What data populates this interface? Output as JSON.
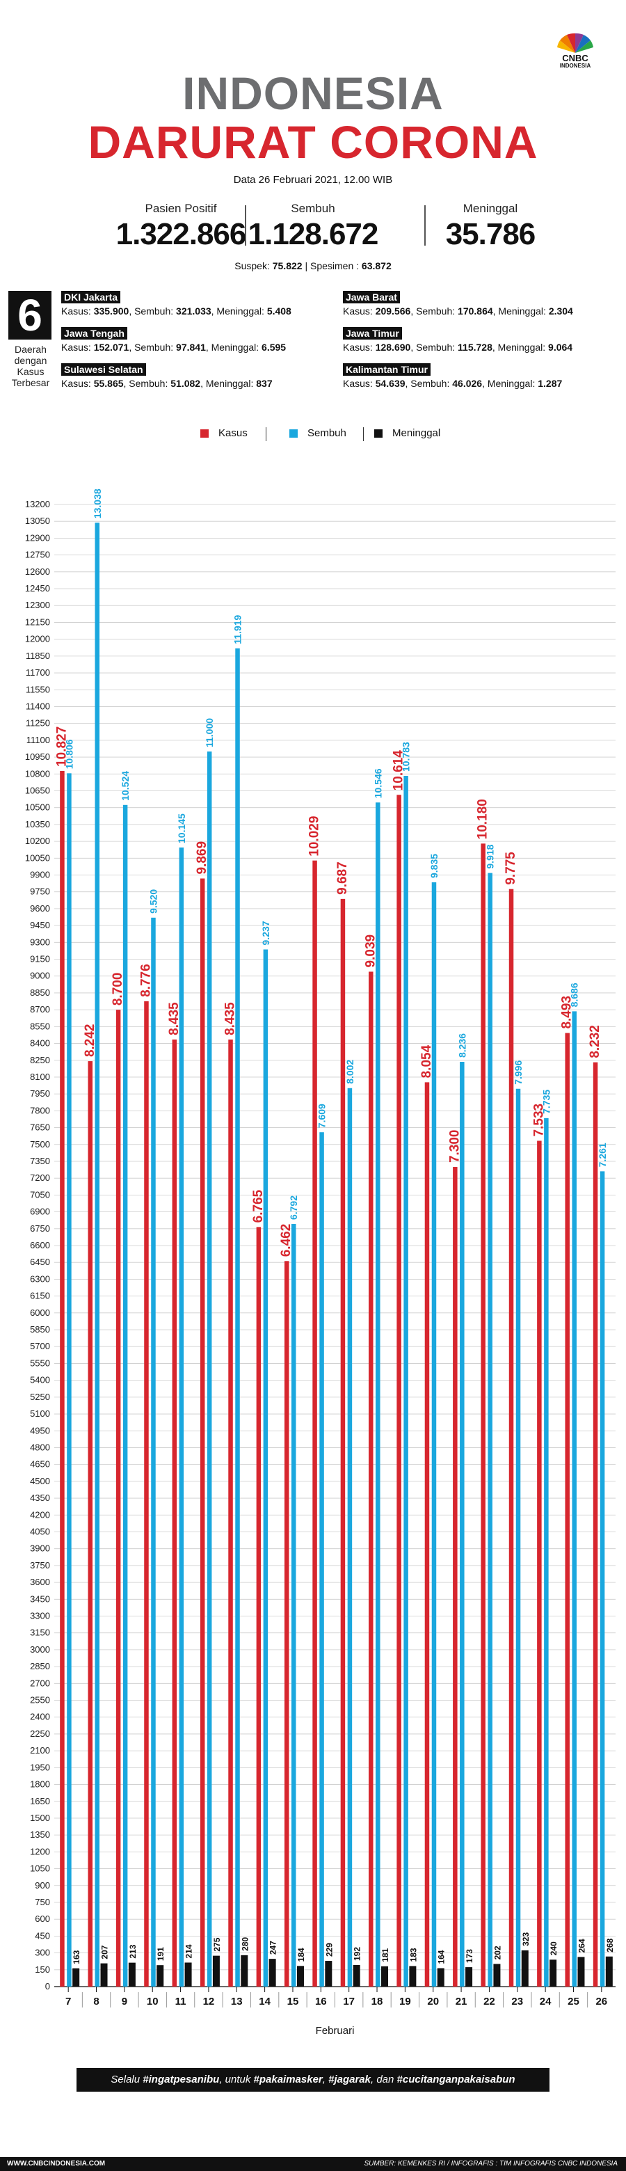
{
  "brand": {
    "logo_text": "CNBC",
    "logo_sub": "INDONESIA"
  },
  "header": {
    "title_line1": "INDONESIA",
    "title_line2": "DARURAT CORONA",
    "date": "Data 26 Februari 2021, 12.00 WIB"
  },
  "stats": [
    {
      "label": "Pasien Positif",
      "value": "1.322.866"
    },
    {
      "label": "Sembuh",
      "value": "1.128.672"
    },
    {
      "label": "Meninggal",
      "value": "35.786"
    }
  ],
  "suspek": {
    "label": "Suspek:",
    "value": "75.822",
    "sep": "|",
    "spesimen_label": "Spesimen :",
    "spesimen_value": "63.872"
  },
  "regions_box": {
    "number": "6",
    "caption": "Daerah dengan Kasus Terbesar"
  },
  "regions": [
    {
      "name": "DKI Jakarta",
      "kasus": "335.900",
      "sembuh": "321.033",
      "meninggal": "5.408"
    },
    {
      "name": "Jawa Barat",
      "kasus": "209.566",
      "sembuh": "170.864",
      "meninggal": "2.304"
    },
    {
      "name": "Jawa Tengah",
      "kasus": "152.071",
      "sembuh": "97.841",
      "meninggal": "6.595"
    },
    {
      "name": "Jawa Timur",
      "kasus": "128.690",
      "sembuh": "115.728",
      "meninggal": "9.064"
    },
    {
      "name": "Sulawesi Selatan",
      "kasus": "55.865",
      "sembuh": "51.082",
      "meninggal": "837"
    },
    {
      "name": "Kalimantan Timur",
      "kasus": "54.639",
      "sembuh": "46.026",
      "meninggal": "1.287"
    }
  ],
  "region_labels": {
    "kasus": "Kasus:",
    "sembuh": ", Sembuh:",
    "meninggal": ", Meninggal:"
  },
  "colors": {
    "kasus": "#d7262e",
    "sembuh": "#1aa7de",
    "meninggal": "#111111",
    "grid": "#cccccc",
    "title_gray": "#6d6e70"
  },
  "chart_data": {
    "type": "bar",
    "legend": [
      "Kasus",
      "Sembuh",
      "Meninggal"
    ],
    "xlabel": "Februari",
    "ylabel": "",
    "ylim": [
      0,
      13200
    ],
    "ytick_step": 150,
    "categories": [
      "7",
      "8",
      "9",
      "10",
      "11",
      "12",
      "13",
      "14",
      "15",
      "16",
      "17",
      "18",
      "19",
      "20",
      "21",
      "22",
      "23",
      "24",
      "25",
      "26"
    ],
    "series": [
      {
        "name": "Kasus",
        "values": [
          10827,
          8242,
          8700,
          8776,
          8435,
          9869,
          8435,
          6765,
          6462,
          10029,
          9687,
          9039,
          10614,
          8054,
          7300,
          10180,
          9775,
          7533,
          8493,
          8232
        ],
        "labels": [
          "10.827",
          "8.242",
          "8.700",
          "8.776",
          "8.435",
          "9.869",
          "8.435",
          "6.765",
          "6.462",
          "10.029",
          "9.687",
          "9.039",
          "10.614",
          "8.054",
          "7.300",
          "10.180",
          "9.775",
          "7.533",
          "8.493",
          "8.232"
        ]
      },
      {
        "name": "Sembuh",
        "values": [
          10806,
          13038,
          10524,
          9520,
          10145,
          11000,
          11919,
          9237,
          6792,
          7609,
          8002,
          10546,
          10783,
          9835,
          8236,
          9918,
          7996,
          7735,
          8686,
          7261
        ],
        "labels": [
          "10.806",
          "13.038",
          "10.524",
          "9.520",
          "10.145",
          "11.000",
          "11.919",
          "9.237",
          "6.792",
          "7.609",
          "8.002",
          "10.546",
          "10.783",
          "9.835",
          "8.236",
          "9.918",
          "7.996",
          "7.735",
          "8.686",
          "7.261"
        ]
      },
      {
        "name": "Meninggal",
        "values": [
          163,
          207,
          213,
          191,
          214,
          275,
          280,
          247,
          184,
          229,
          192,
          181,
          183,
          164,
          173,
          202,
          323,
          240,
          264,
          268
        ],
        "labels": [
          "163",
          "207",
          "213",
          "191",
          "214",
          "275",
          "280",
          "247",
          "184",
          "229",
          "192",
          "181",
          "183",
          "164",
          "173",
          "202",
          "323",
          "240",
          "264",
          "268"
        ]
      }
    ]
  },
  "footer": {
    "note_parts": [
      "Selalu ",
      "#ingatpesanibu",
      ", untuk ",
      "#pakaimasker",
      ", ",
      "#jagarak",
      ", dan ",
      "#cucitanganpakaisabun"
    ],
    "website": "WWW.CNBCINDONESIA.COM",
    "source": "SUMBER: KEMENKES RI / INFOGRAFIS : TIM INFOGRAFIS CNBC INDONESIA"
  }
}
